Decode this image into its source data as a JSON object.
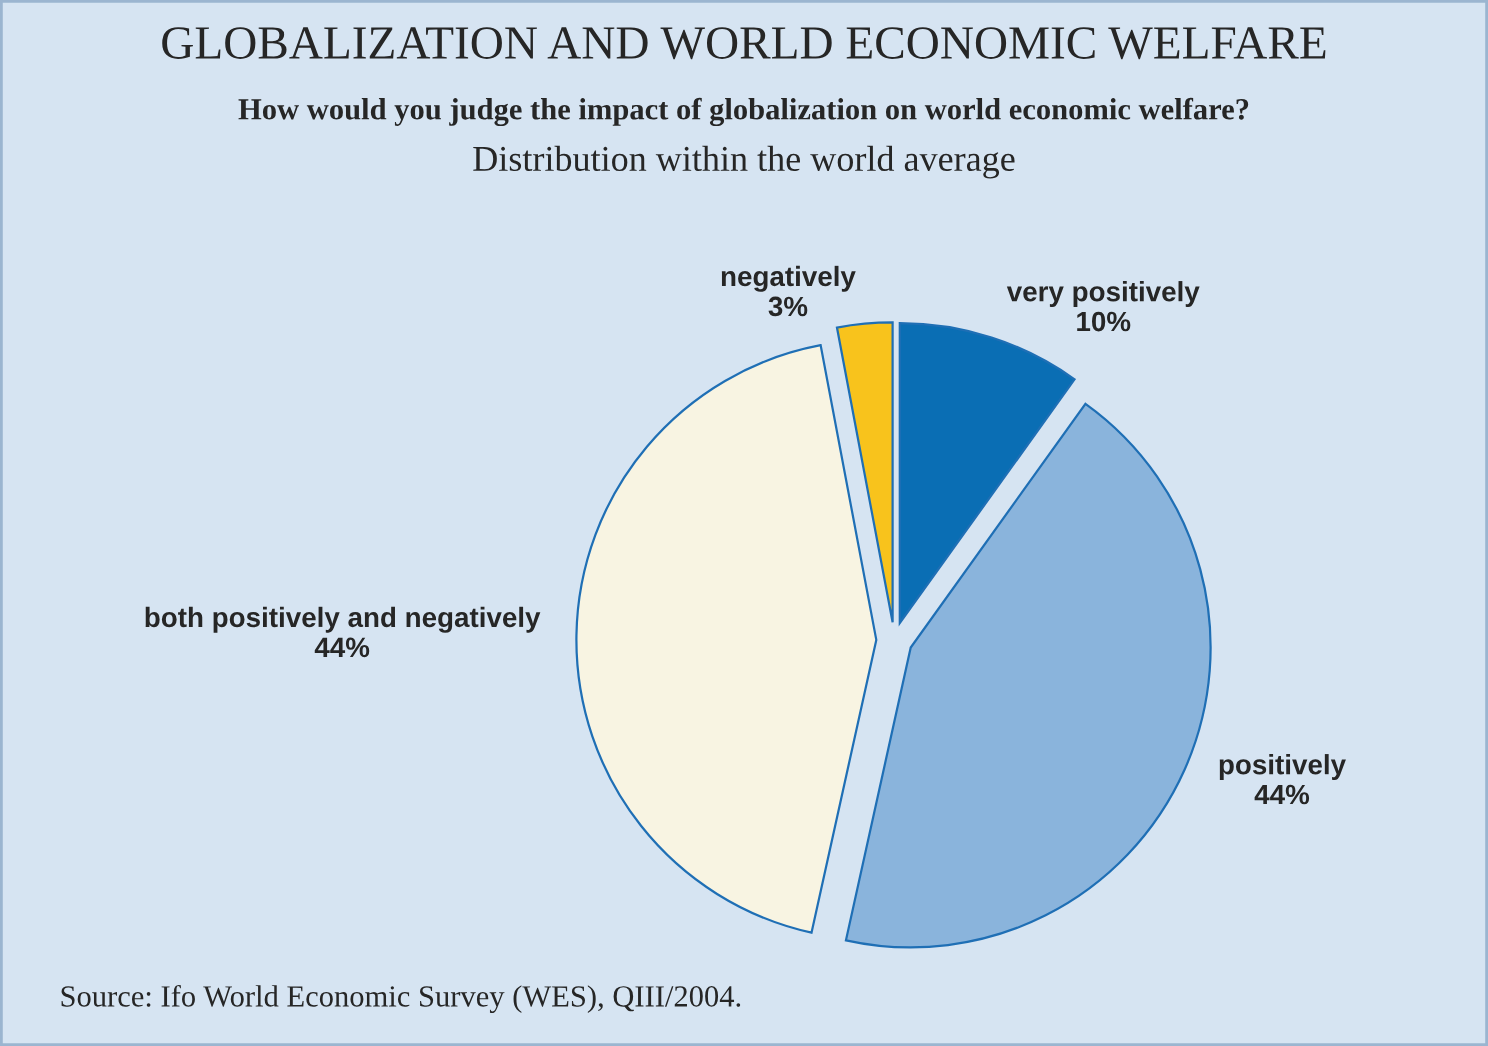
{
  "chart_data": {
    "type": "pie",
    "title": "GLOBALIZATION AND WORLD ECONOMIC WELFARE",
    "subtitle": "How would you judge the impact of globalization on world economic welfare?",
    "annotations": [
      "Distribution within the world average",
      "Source: Ifo World Economic Survey (WES), QIII/2004."
    ],
    "categories": [
      "very positively",
      "positively",
      "both positively and negatively",
      "negatively"
    ],
    "values": [
      10,
      44,
      44,
      3
    ],
    "value_labels": [
      "10%",
      "44%",
      "44%",
      "3%"
    ],
    "colors": [
      "#0a6eb4",
      "#8ab4dc",
      "#f8f4e2",
      "#f8c31c"
    ],
    "legend": false
  }
}
